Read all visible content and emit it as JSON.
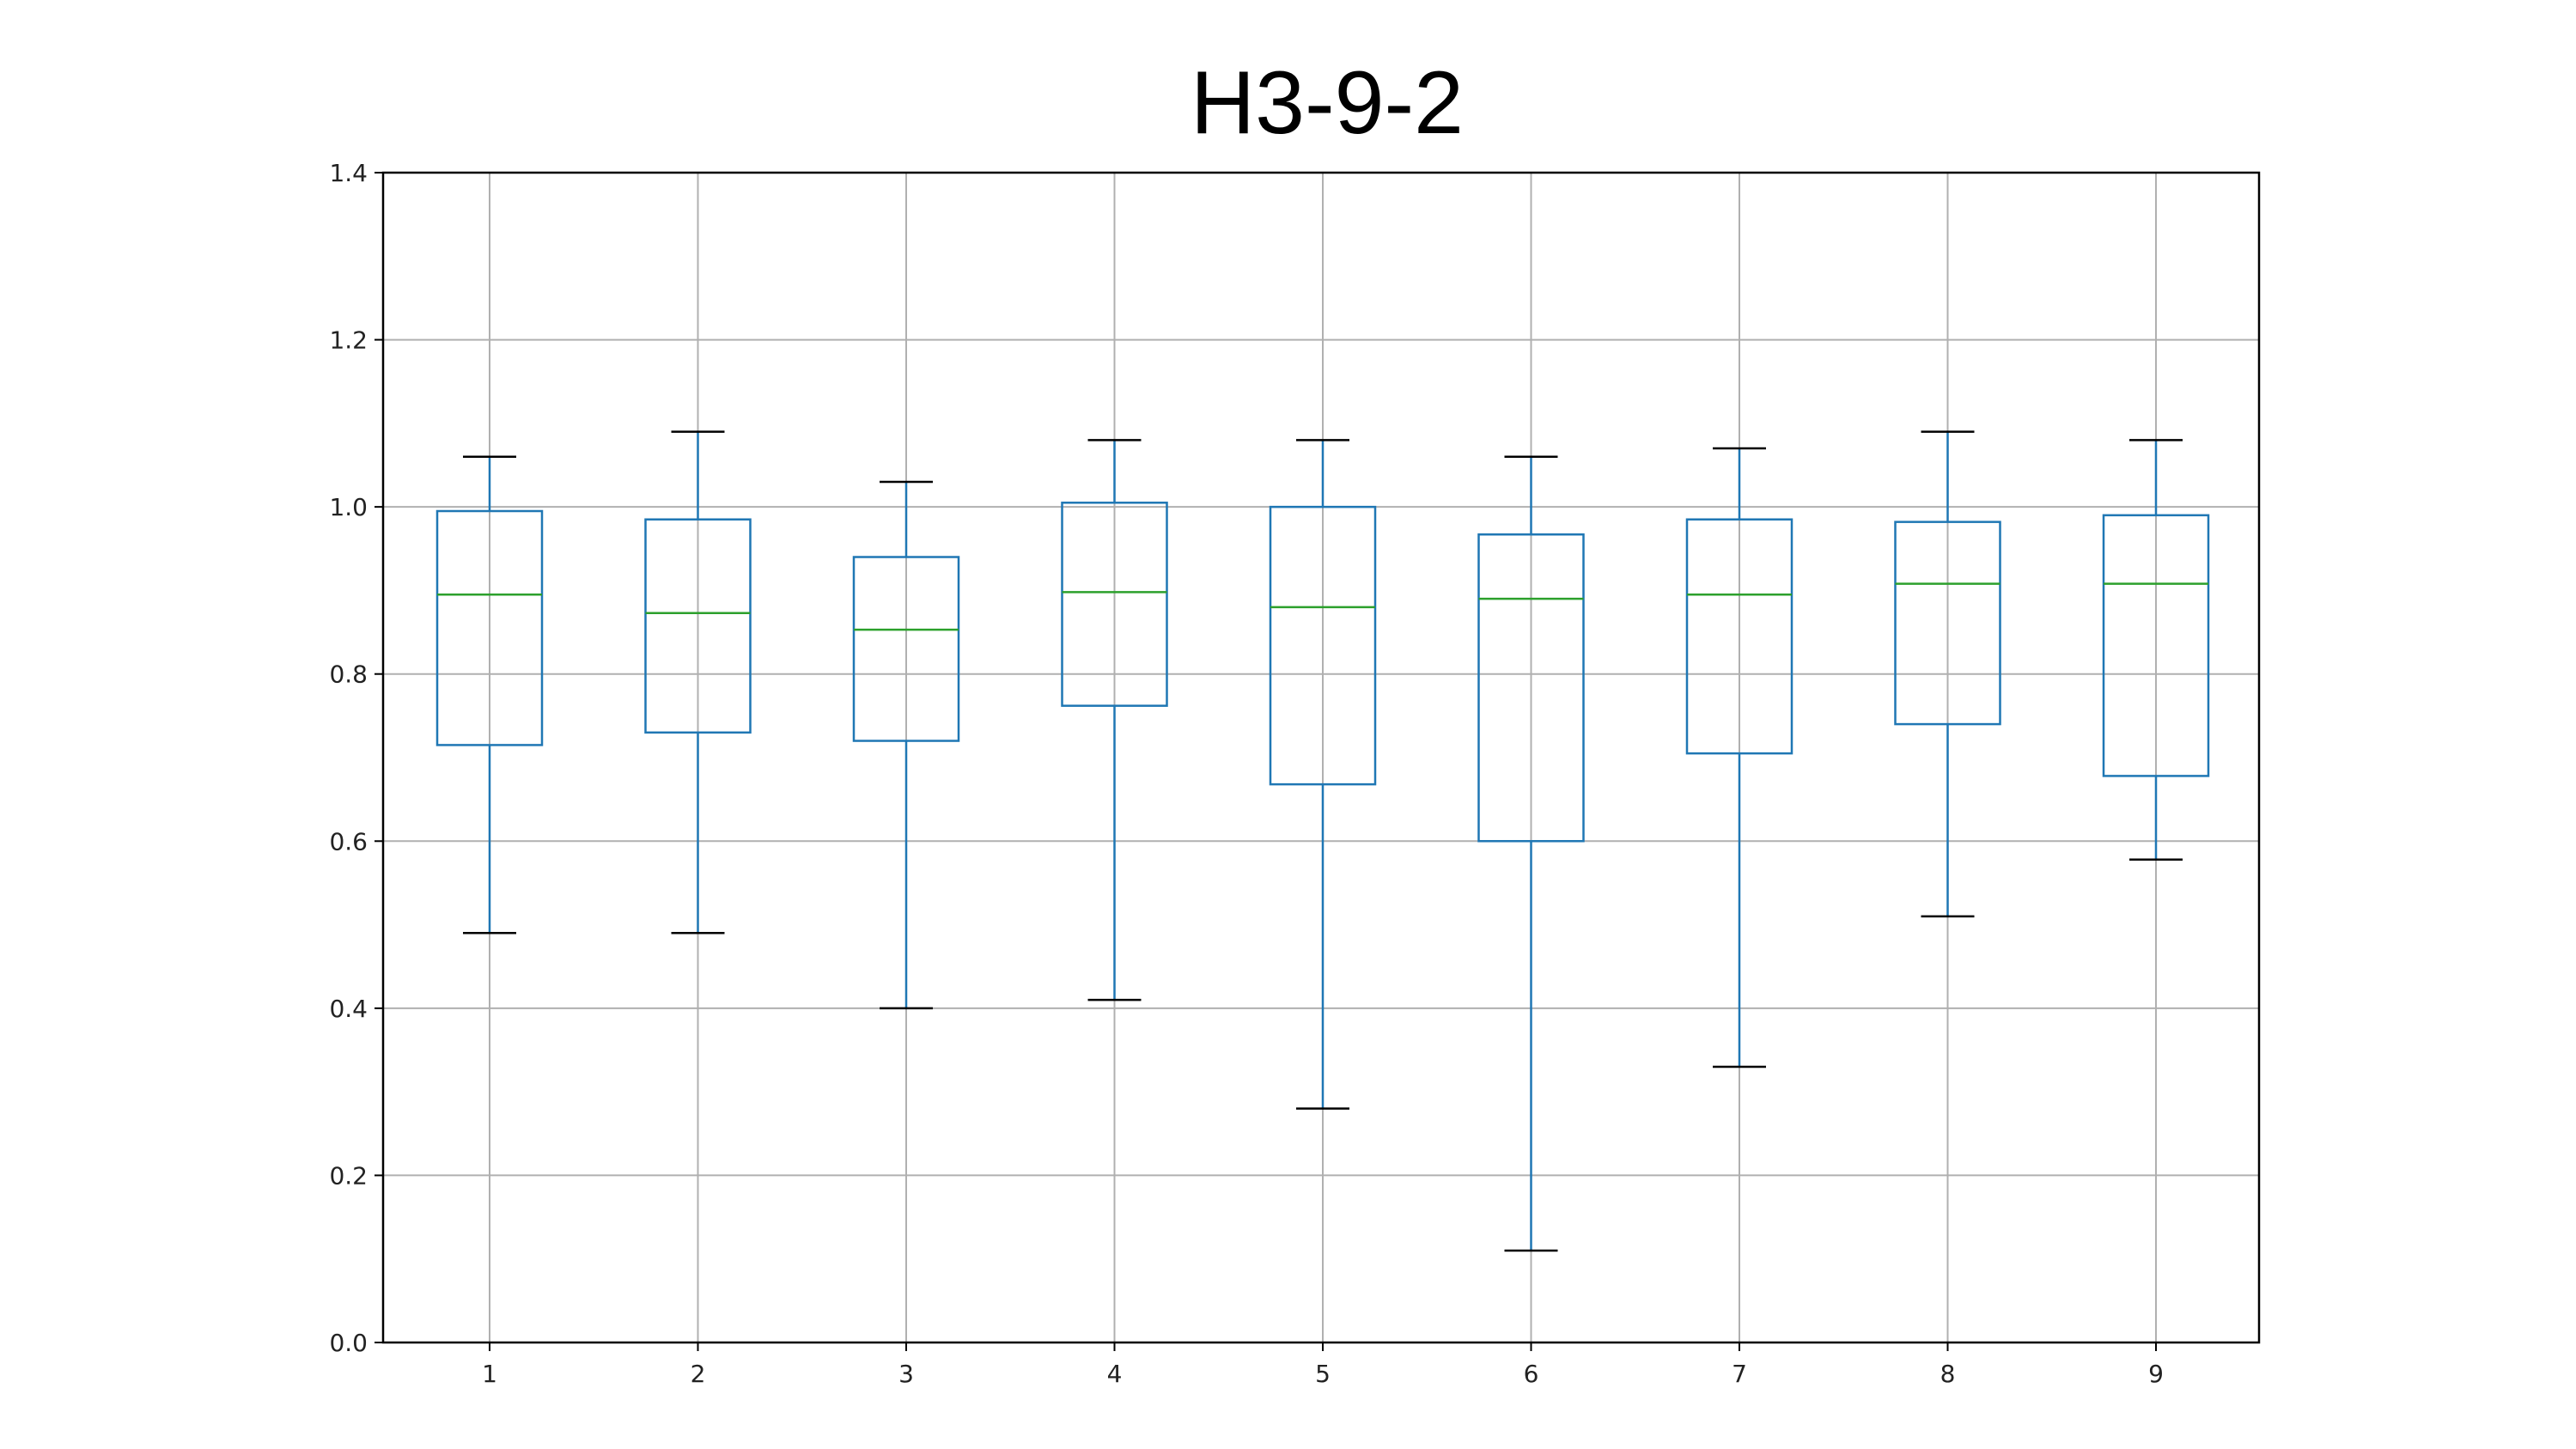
{
  "chart_data": {
    "type": "box",
    "title": "H3-9-2",
    "xlabel": "",
    "ylabel": "",
    "categories": [
      "1",
      "2",
      "3",
      "4",
      "5",
      "6",
      "7",
      "8",
      "9"
    ],
    "ylim": [
      0.0,
      1.4
    ],
    "yticks": [
      "0.0",
      "0.2",
      "0.4",
      "0.6",
      "0.8",
      "1.0",
      "1.2",
      "1.4"
    ],
    "grid": true,
    "boxes": [
      {
        "category": "1",
        "whisker_low": 0.49,
        "q1": 0.715,
        "median": 0.895,
        "q3": 0.995,
        "whisker_high": 1.06
      },
      {
        "category": "2",
        "whisker_low": 0.49,
        "q1": 0.73,
        "median": 0.873,
        "q3": 0.985,
        "whisker_high": 1.09
      },
      {
        "category": "3",
        "whisker_low": 0.4,
        "q1": 0.72,
        "median": 0.853,
        "q3": 0.94,
        "whisker_high": 1.03
      },
      {
        "category": "4",
        "whisker_low": 0.41,
        "q1": 0.762,
        "median": 0.898,
        "q3": 1.005,
        "whisker_high": 1.08
      },
      {
        "category": "5",
        "whisker_low": 0.28,
        "q1": 0.668,
        "median": 0.88,
        "q3": 1.0,
        "whisker_high": 1.08
      },
      {
        "category": "6",
        "whisker_low": 0.11,
        "q1": 0.6,
        "median": 0.89,
        "q3": 0.967,
        "whisker_high": 1.06
      },
      {
        "category": "7",
        "whisker_low": 0.33,
        "q1": 0.705,
        "median": 0.895,
        "q3": 0.985,
        "whisker_high": 1.07
      },
      {
        "category": "8",
        "whisker_low": 0.51,
        "q1": 0.74,
        "median": 0.908,
        "q3": 0.982,
        "whisker_high": 1.09
      },
      {
        "category": "9",
        "whisker_low": 0.578,
        "q1": 0.678,
        "median": 0.908,
        "q3": 0.99,
        "whisker_high": 1.08
      }
    ],
    "colors": {
      "box": "#1f77b4",
      "median": "#2ca02c",
      "cap": "#000000",
      "grid": "#b0b0b0",
      "axes": "#000000"
    }
  }
}
